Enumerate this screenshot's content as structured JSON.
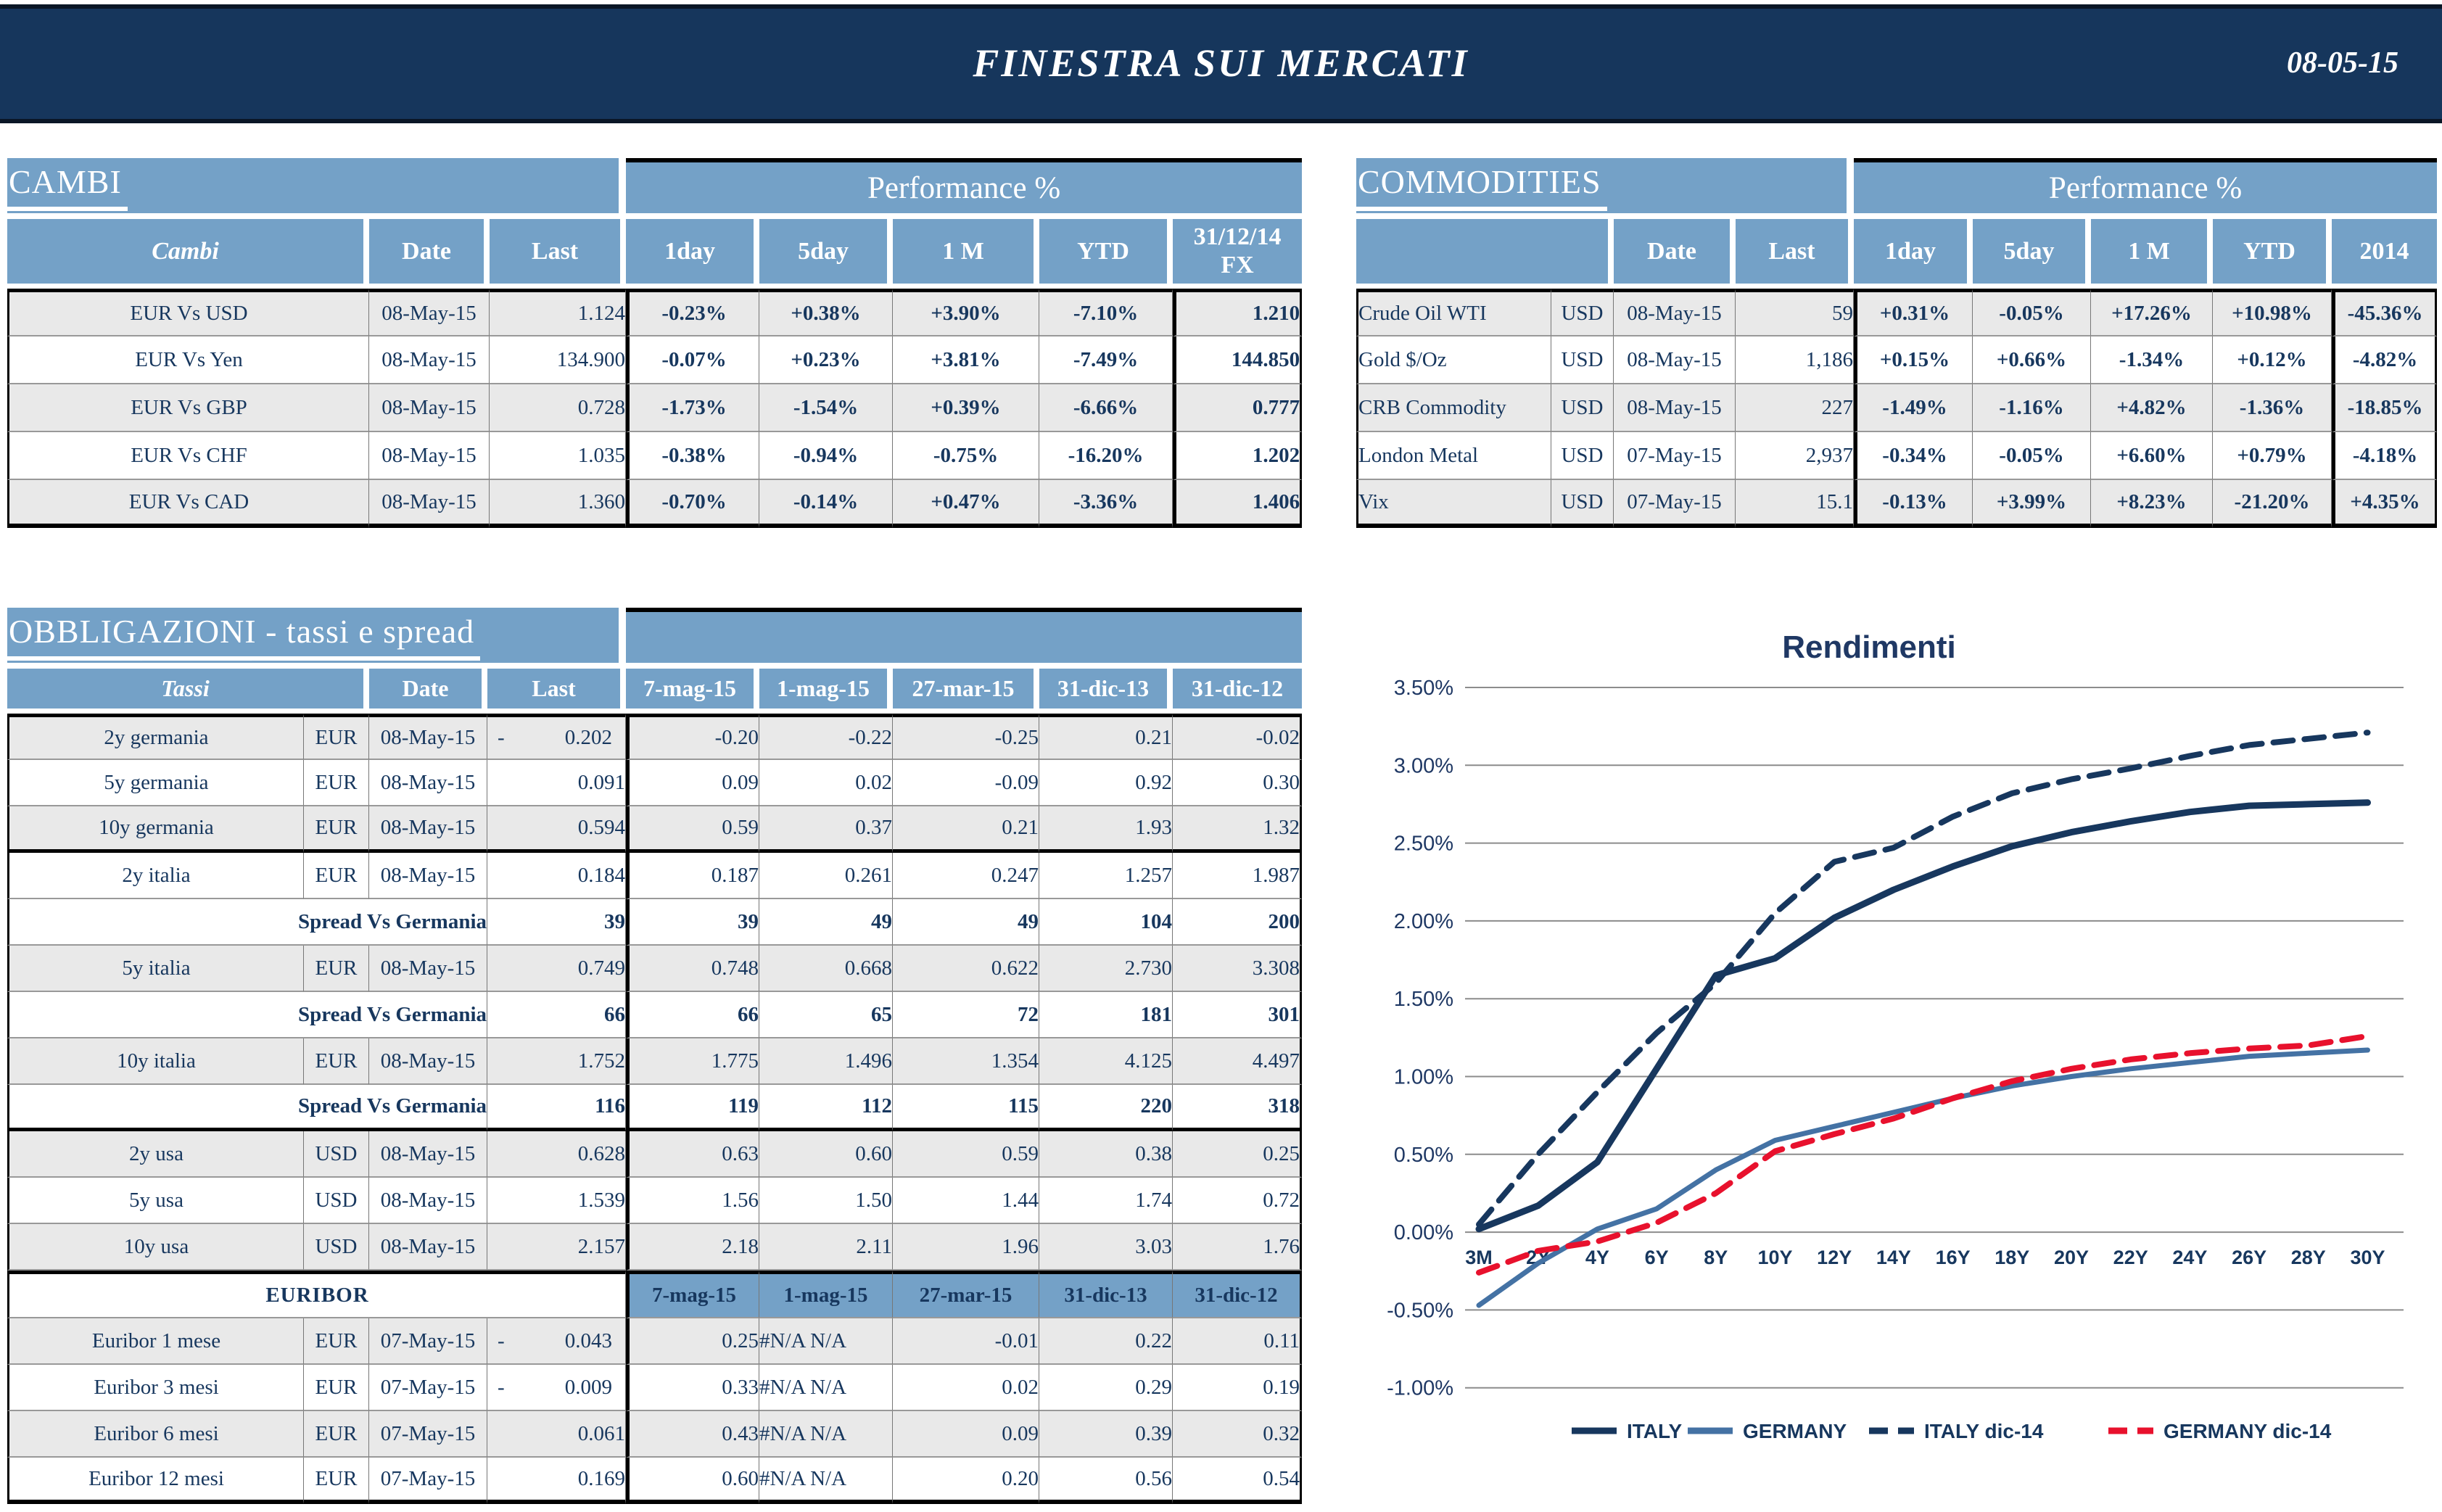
{
  "colors": {
    "topbar_navy": "#16365C",
    "accent_blue": "#74A1C7",
    "text_navy": "#17375E",
    "positive_green": "#1FA05A",
    "negative_red": "#D40000",
    "row_gray": "#E9E9E9"
  },
  "header": {
    "title": "FINESTRA SUI MERCATI",
    "date": "08-05-15"
  },
  "cambi": {
    "title": "CAMBI",
    "performance_label": "Performance %",
    "columns": [
      "Cambi",
      "Date",
      "Last",
      "1day",
      "5day",
      "1 M",
      "YTD",
      "31/12/14",
      "FX"
    ],
    "rows": [
      {
        "name": "EUR Vs USD",
        "date": "08-May-15",
        "last": "1.124",
        "p": [
          "-0.23%",
          "+0.38%",
          "+3.90%",
          "-7.10%"
        ],
        "fx": "1.210"
      },
      {
        "name": "EUR Vs Yen",
        "date": "08-May-15",
        "last": "134.900",
        "p": [
          "-0.07%",
          "+0.23%",
          "+3.81%",
          "-7.49%"
        ],
        "fx": "144.850"
      },
      {
        "name": "EUR Vs GBP",
        "date": "08-May-15",
        "last": "0.728",
        "p": [
          "-1.73%",
          "-1.54%",
          "+0.39%",
          "-6.66%"
        ],
        "fx": "0.777"
      },
      {
        "name": "EUR Vs CHF",
        "date": "08-May-15",
        "last": "1.035",
        "p": [
          "-0.38%",
          "-0.94%",
          "-0.75%",
          "-16.20%"
        ],
        "fx": "1.202"
      },
      {
        "name": "EUR Vs CAD",
        "date": "08-May-15",
        "last": "1.360",
        "p": [
          "-0.70%",
          "-0.14%",
          "+0.47%",
          "-3.36%"
        ],
        "fx": "1.406"
      }
    ]
  },
  "commodities": {
    "title": "COMMODITIES",
    "performance_label": "Performance %",
    "columns": [
      "",
      "Date",
      "Last",
      "1day",
      "5day",
      "1 M",
      "YTD",
      "2014"
    ],
    "rows": [
      {
        "name": "Crude Oil WTI",
        "cur": "USD",
        "date": "08-May-15",
        "last": "59",
        "p": [
          "+0.31%",
          "-0.05%",
          "+17.26%",
          "+10.98%",
          "-45.36%"
        ]
      },
      {
        "name": "Gold $/Oz",
        "cur": "USD",
        "date": "08-May-15",
        "last": "1,186",
        "p": [
          "+0.15%",
          "+0.66%",
          "-1.34%",
          "+0.12%",
          "-4.82%"
        ]
      },
      {
        "name": "CRB Commodity",
        "cur": "USD",
        "date": "08-May-15",
        "last": "227",
        "p": [
          "-1.49%",
          "-1.16%",
          "+4.82%",
          "-1.36%",
          "-18.85%"
        ]
      },
      {
        "name": "London Metal",
        "cur": "USD",
        "date": "07-May-15",
        "last": "2,937",
        "p": [
          "-0.34%",
          "-0.05%",
          "+6.60%",
          "+0.79%",
          "-4.18%"
        ]
      },
      {
        "name": "Vix",
        "cur": "USD",
        "date": "07-May-15",
        "last": "15.1",
        "p": [
          "-0.13%",
          "+3.99%",
          "+8.23%",
          "-21.20%",
          "+4.35%"
        ]
      }
    ]
  },
  "obbligazioni": {
    "title": "OBBLIGAZIONI - tassi e spread",
    "columns": [
      "Tassi",
      "Date",
      "Last",
      "7-mag-15",
      "1-mag-15",
      "27-mar-15",
      "31-dic-13",
      "31-dic-12"
    ],
    "rows": [
      {
        "kind": "data",
        "name": "2y germania",
        "cur": "EUR",
        "date": "08-May-15",
        "dash": "-",
        "last": "0.202",
        "v": [
          "-0.20",
          "-0.22",
          "-0.25",
          "0.21",
          "-0.02"
        ],
        "shade": true
      },
      {
        "kind": "data",
        "name": "5y germania",
        "cur": "EUR",
        "date": "08-May-15",
        "last": "0.091",
        "v": [
          "0.09",
          "0.02",
          "-0.09",
          "0.92",
          "0.30"
        ]
      },
      {
        "kind": "data",
        "name": "10y germania",
        "cur": "EUR",
        "date": "08-May-15",
        "last": "0.594",
        "v": [
          "0.59",
          "0.37",
          "0.21",
          "1.93",
          "1.32"
        ],
        "shade": true,
        "bb": true
      },
      {
        "kind": "data",
        "name": "2y italia",
        "cur": "EUR",
        "date": "08-May-15",
        "last": "0.184",
        "v": [
          "0.187",
          "0.261",
          "0.247",
          "1.257",
          "1.987"
        ]
      },
      {
        "kind": "spread",
        "name": "Spread Vs Germania",
        "last": "39",
        "v": [
          "39",
          "49",
          "49",
          "104",
          "200"
        ]
      },
      {
        "kind": "data",
        "name": "5y italia",
        "cur": "EUR",
        "date": "08-May-15",
        "last": "0.749",
        "v": [
          "0.748",
          "0.668",
          "0.622",
          "2.730",
          "3.308"
        ],
        "shade": true
      },
      {
        "kind": "spread",
        "name": "Spread Vs Germania",
        "last": "66",
        "v": [
          "66",
          "65",
          "72",
          "181",
          "301"
        ]
      },
      {
        "kind": "data",
        "name": "10y italia",
        "cur": "EUR",
        "date": "08-May-15",
        "last": "1.752",
        "v": [
          "1.775",
          "1.496",
          "1.354",
          "4.125",
          "4.497"
        ],
        "shade": true
      },
      {
        "kind": "spread",
        "name": "Spread Vs Germania",
        "last": "116",
        "v": [
          "119",
          "112",
          "115",
          "220",
          "318"
        ],
        "bb": true
      },
      {
        "kind": "data",
        "name": "2y usa",
        "cur": "USD",
        "date": "08-May-15",
        "last": "0.628",
        "v": [
          "0.63",
          "0.60",
          "0.59",
          "0.38",
          "0.25"
        ],
        "shade": true
      },
      {
        "kind": "data",
        "name": "5y usa",
        "cur": "USD",
        "date": "08-May-15",
        "last": "1.539",
        "v": [
          "1.56",
          "1.50",
          "1.44",
          "1.74",
          "0.72"
        ]
      },
      {
        "kind": "data",
        "name": "10y usa",
        "cur": "USD",
        "date": "08-May-15",
        "last": "2.157",
        "v": [
          "2.18",
          "2.11",
          "1.96",
          "3.03",
          "1.76"
        ],
        "shade": true
      }
    ],
    "euribor": {
      "label": "EURIBOR",
      "columns": [
        "7-mag-15",
        "1-mag-15",
        "27-mar-15",
        "31-dic-13",
        "31-dic-12"
      ],
      "rows": [
        {
          "name": "Euribor 1 mese",
          "cur": "EUR",
          "date": "07-May-15",
          "dash": "-",
          "last": "0.043",
          "v": [
            "0.25",
            "#N/A N/A",
            "-0.01",
            "0.22",
            "0.11"
          ],
          "shade": true
        },
        {
          "name": "Euribor 3 mesi",
          "cur": "EUR",
          "date": "07-May-15",
          "dash": "-",
          "last": "0.009",
          "v": [
            "0.33",
            "#N/A N/A",
            "0.02",
            "0.29",
            "0.19"
          ]
        },
        {
          "name": "Euribor 6 mesi",
          "cur": "EUR",
          "date": "07-May-15",
          "last": "0.061",
          "v": [
            "0.43",
            "#N/A N/A",
            "0.09",
            "0.39",
            "0.32"
          ],
          "shade": true
        },
        {
          "name": "Euribor 12 mesi",
          "cur": "EUR",
          "date": "07-May-15",
          "last": "0.169",
          "v": [
            "0.60",
            "#N/A N/A",
            "0.20",
            "0.56",
            "0.54"
          ]
        }
      ]
    }
  },
  "chart_data": {
    "type": "line",
    "title": "Rendimenti",
    "categories": [
      "3M",
      "2Y",
      "4Y",
      "6Y",
      "8Y",
      "10Y",
      "12Y",
      "14Y",
      "16Y",
      "18Y",
      "20Y",
      "22Y",
      "24Y",
      "26Y",
      "28Y",
      "30Y"
    ],
    "series": [
      {
        "name": "ITALY",
        "color": "#17375E",
        "style": "solid",
        "width": 9,
        "values": [
          0.02,
          0.17,
          0.45,
          1.05,
          1.65,
          1.76,
          2.02,
          2.2,
          2.35,
          2.48,
          2.57,
          2.64,
          2.7,
          2.74,
          2.75,
          2.76
        ]
      },
      {
        "name": "GERMANY",
        "color": "#4472A4",
        "style": "solid",
        "width": 7,
        "values": [
          -0.47,
          -0.2,
          0.02,
          0.15,
          0.4,
          0.59,
          0.68,
          0.77,
          0.86,
          0.94,
          1.0,
          1.05,
          1.09,
          1.13,
          1.15,
          1.17
        ]
      },
      {
        "name": "ITALY dic-14",
        "color": "#17375E",
        "style": "dashed",
        "width": 8,
        "values": [
          0.05,
          0.5,
          0.9,
          1.28,
          1.6,
          2.05,
          2.38,
          2.47,
          2.67,
          2.82,
          2.91,
          2.98,
          3.06,
          3.13,
          3.17,
          3.21
        ]
      },
      {
        "name": "GERMANY dic-14",
        "color": "#E8112D",
        "style": "dashed",
        "width": 8,
        "values": [
          -0.26,
          -0.12,
          -0.06,
          0.06,
          0.25,
          0.52,
          0.63,
          0.73,
          0.86,
          0.97,
          1.05,
          1.11,
          1.15,
          1.18,
          1.2,
          1.26
        ]
      }
    ],
    "ylabel": "",
    "xlabel": "",
    "ylim": [
      -1.0,
      3.5
    ],
    "ytick_step": 0.5,
    "grid": true,
    "legend_position": "bottom"
  }
}
